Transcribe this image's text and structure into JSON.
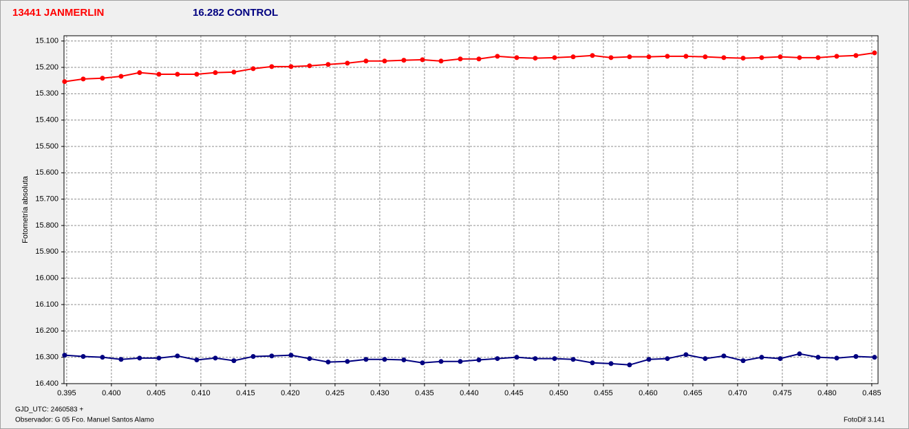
{
  "chart_data": {
    "type": "line",
    "y_label": "Fotometría absoluta",
    "footer_left_1": "GJD_UTC: 2460583 +",
    "footer_left_2": "Observador: G 05  Fco. Manuel Santos Alamo",
    "footer_right": "FotoDif 3.141",
    "x": [
      0.39477,
      0.39685,
      0.399,
      0.40108,
      0.40315,
      0.40531,
      0.40738,
      0.40954,
      0.41162,
      0.41369,
      0.41585,
      0.41792,
      0.42008,
      0.42215,
      0.42423,
      0.42638,
      0.42846,
      0.43054,
      0.43269,
      0.43477,
      0.43685,
      0.439,
      0.44108,
      0.44315,
      0.44531,
      0.44738,
      0.44954,
      0.45162,
      0.45377,
      0.45585,
      0.45792,
      0.46008,
      0.46215,
      0.46423,
      0.46638,
      0.46846,
      0.47062,
      0.47269,
      0.47477,
      0.47692,
      0.479,
      0.48108,
      0.48323,
      0.48531
    ],
    "series": [
      {
        "name": "13441 JANMERLIN",
        "color": "#ff0000",
        "values": [
          15.254,
          15.244,
          15.241,
          15.234,
          15.22,
          15.226,
          15.226,
          15.226,
          15.22,
          15.218,
          15.205,
          15.197,
          15.197,
          15.194,
          15.189,
          15.184,
          15.176,
          15.176,
          15.173,
          15.171,
          15.176,
          15.168,
          15.168,
          15.158,
          15.163,
          15.165,
          15.163,
          15.16,
          15.155,
          15.163,
          15.16,
          15.16,
          15.158,
          15.158,
          15.16,
          15.163,
          15.165,
          15.163,
          15.16,
          15.163,
          15.163,
          15.158,
          15.155,
          15.145
        ]
      },
      {
        "name": "16.282 CONTROL",
        "color": "#000080",
        "values": [
          16.292,
          16.297,
          16.3,
          16.308,
          16.303,
          16.303,
          16.295,
          16.31,
          16.303,
          16.313,
          16.297,
          16.295,
          16.292,
          16.305,
          16.318,
          16.316,
          16.308,
          16.308,
          16.31,
          16.321,
          16.316,
          16.316,
          16.31,
          16.305,
          16.3,
          16.305,
          16.305,
          16.308,
          16.321,
          16.324,
          16.329,
          16.308,
          16.305,
          16.29,
          16.305,
          16.295,
          16.313,
          16.3,
          16.305,
          16.287,
          16.3,
          16.303,
          16.297,
          16.3
        ]
      }
    ],
    "xlim": [
      0.3947,
      0.4857
    ],
    "ylim": [
      16.4,
      15.08
    ],
    "xticks": [
      0.395,
      {
        "value": 0.4,
        "label": "0.400"
      },
      0.405,
      {
        "value": 0.41,
        "label": "0.410"
      },
      0.415,
      {
        "value": 0.42,
        "label": "0.420"
      },
      0.425,
      {
        "value": 0.43,
        "label": "0.430"
      },
      0.435,
      {
        "value": 0.44,
        "label": "0.440"
      },
      0.445,
      {
        "value": 0.45,
        "label": "0.450"
      },
      0.455,
      {
        "value": 0.46,
        "label": "0.460"
      },
      0.465,
      {
        "value": 0.47,
        "label": "0.470"
      },
      0.475,
      {
        "value": 0.48,
        "label": "0.480"
      },
      0.485
    ],
    "yticks": [
      {
        "value": 15.1,
        "label": "15.100"
      },
      {
        "value": 15.2,
        "label": "15.200"
      },
      {
        "value": 15.3,
        "label": "15.300"
      },
      {
        "value": 15.4,
        "label": "15.400"
      },
      {
        "value": 15.5,
        "label": "15.500"
      },
      {
        "value": 15.6,
        "label": "15.600"
      },
      {
        "value": 15.7,
        "label": "15.700"
      },
      {
        "value": 15.8,
        "label": "15.800"
      },
      {
        "value": 15.9,
        "label": "15.900"
      },
      {
        "value": 16.0,
        "label": "16.000"
      },
      {
        "value": 16.1,
        "label": "16.100"
      },
      {
        "value": 16.2,
        "label": "16.200"
      },
      {
        "value": 16.3,
        "label": "16.300"
      },
      {
        "value": 16.4,
        "label": "16.400"
      }
    ],
    "grid": true
  }
}
